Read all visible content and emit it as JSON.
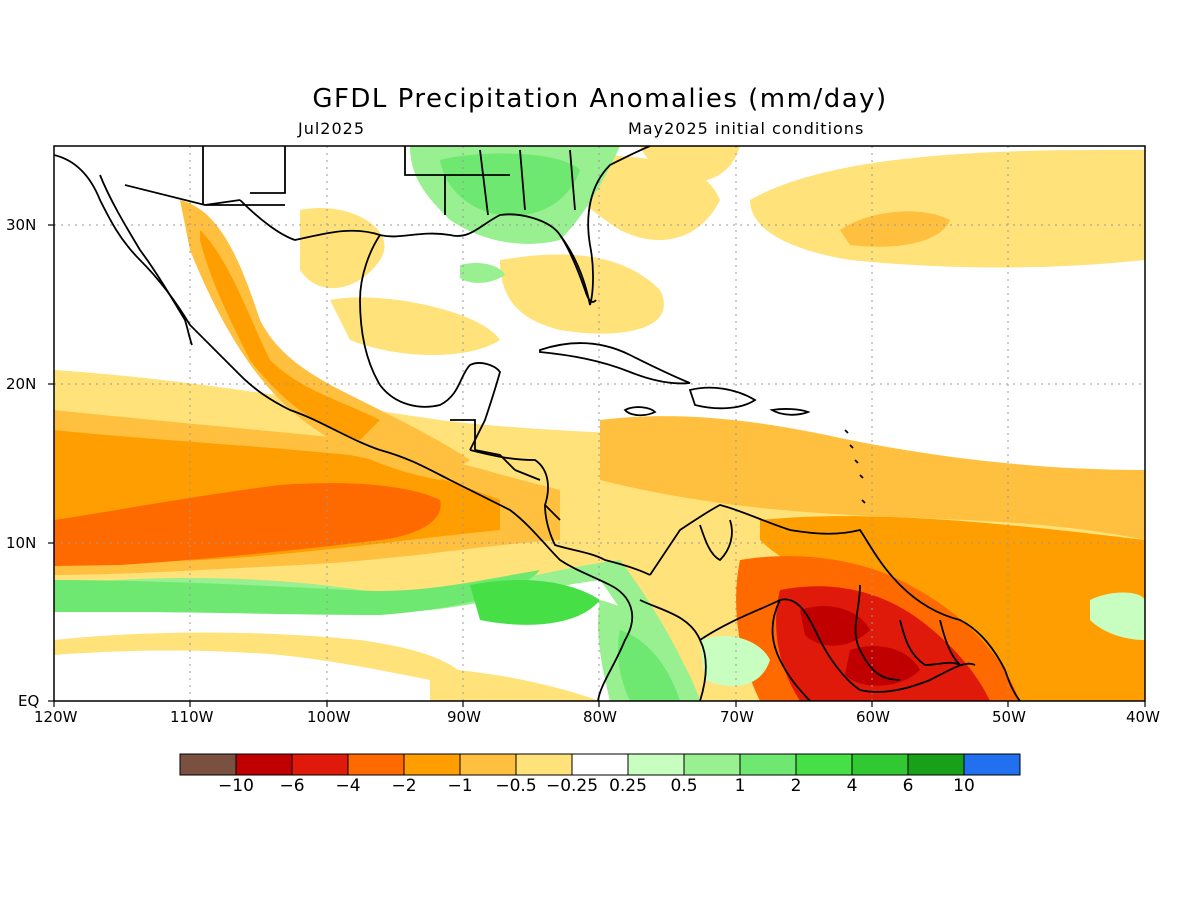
{
  "header": {
    "title": "GFDL Precipitation Anomalies (mm/day)",
    "valid_month": "Jul2025",
    "init": "May2025 initial conditions"
  },
  "map": {
    "lon_labels": [
      "120W",
      "110W",
      "100W",
      "90W",
      "80W",
      "70W",
      "60W",
      "50W",
      "40W"
    ],
    "lat_labels": [
      "EQ",
      "10N",
      "20N",
      "30N"
    ],
    "lon_range": [
      -120,
      -40
    ],
    "lat_range": [
      0,
      35
    ],
    "grid": "dotted"
  },
  "legend": {
    "colors": [
      "#7a5040",
      "#c00000",
      "#e01a0a",
      "#ff6a00",
      "#ff9e00",
      "#ffc040",
      "#ffe27a",
      "#ffffff",
      "#c8ffc0",
      "#98f090",
      "#6ee870",
      "#46e046",
      "#32c832",
      "#18a018",
      "#2070f0"
    ],
    "labels": [
      "−10",
      "−6",
      "−4",
      "−2",
      "−1",
      "−0.5",
      "−0.25",
      "0.25",
      "0.5",
      "1",
      "2",
      "4",
      "6",
      "10"
    ]
  }
}
